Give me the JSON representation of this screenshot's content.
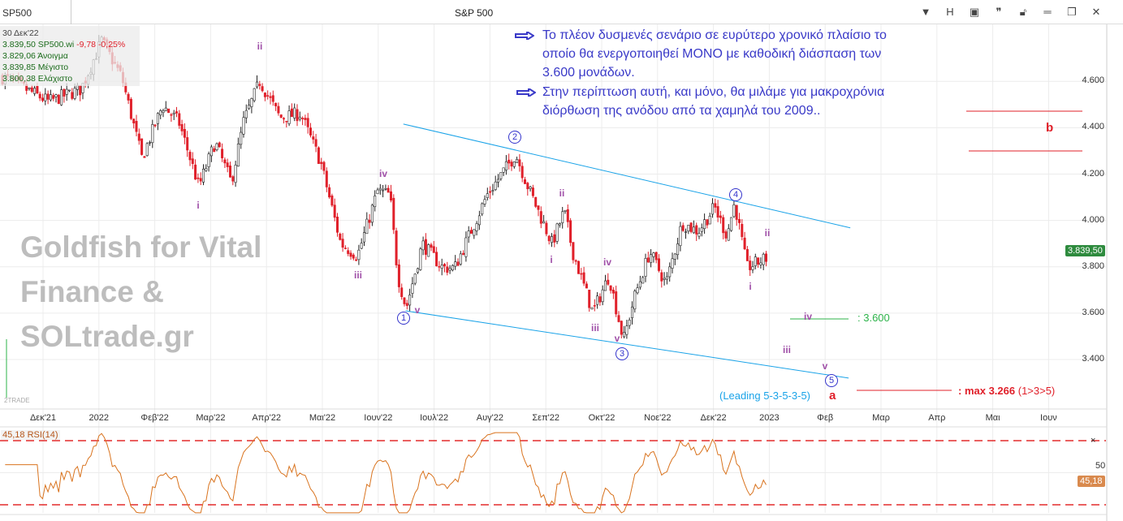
{
  "header": {
    "symbol": "SP500",
    "title": "S&P 500",
    "h_label": "H"
  },
  "info": {
    "date": "30 Δεκ'22",
    "close": "3.839,50",
    "ticker": "SP500.wi",
    "change": "-9,78",
    "change_pct": "-0,25%",
    "open": "3.829,06",
    "open_label": "Άνοιγμα",
    "high": "3.839,85",
    "high_label": "Μέγιστο",
    "low": "3.800,38",
    "low_label": "Ελάχιστο"
  },
  "watermark": [
    "Goldfish for Vital",
    "Finance &",
    "SOLtrade.gr"
  ],
  "brand_small": "2TRADE",
  "notes": [
    [
      "Το πλέον δυσμενές σενάριο σε ευρύτερο χρονικό πλαίσιο το",
      "οποίο θα ενεργοποιηθεί ΜΟΝΟ με καθοδική διάσπαση των",
      "3.600 μονάδων."
    ],
    [
      "Στην περίπτωση αυτή, και μόνο, θα μιλάμε για μακροχρόνια",
      "διόρθωση της ανόδου από τα χαμηλά του 2009.."
    ]
  ],
  "annotations": {
    "level_3600": ": 3.600",
    "max_label": ": max 3.266",
    "max_ratio": "(1>3>5)",
    "leading": "(Leading 5-3-5-3-5)",
    "a": "a",
    "b": "b"
  },
  "waves": {
    "w1": "1",
    "w2": "2",
    "w3": "3",
    "w4": "4",
    "w5": "5",
    "ii_a": "ii",
    "i_a": "i",
    "iii_a": "iii",
    "iv_a": "iv",
    "v_a": "v",
    "ii_b": "ii",
    "i_b": "i",
    "iv_b": "iv",
    "iii_b": "iii",
    "v_b": "v",
    "ii_c": "ii",
    "i_c": "i",
    "iv_c": "iv",
    "iii_c": "iii",
    "v_c": "v"
  },
  "colors": {
    "up": "#222222",
    "down": "#e0202a",
    "channel": "#1aa3e8",
    "rsi": "#d9731e",
    "last_price": "#2e8b3e",
    "target": "#e0202a",
    "support": "#2db34a"
  },
  "chart_data": {
    "type": "candlestick",
    "title": "S&P 500",
    "x_ticks": [
      "Δεκ'21",
      "2022",
      "Φεβ'22",
      "Μαρ'22",
      "Απρ'22",
      "Μαι'22",
      "Ιουν'22",
      "Ιουλ'22",
      "Αυγ'22",
      "Σεπ'22",
      "Οκτ'22",
      "Νοε'22",
      "Δεκ'22",
      "2023",
      "Φεβ",
      "Μαρ",
      "Απρ",
      "Μαι",
      "Ιουν"
    ],
    "y_ticks": [
      "3.400",
      "3.600",
      "3.800",
      "4.000",
      "4.200",
      "4.400",
      "4.600"
    ],
    "y_tick_values": [
      3400,
      3600,
      3800,
      4000,
      4200,
      4400,
      4600
    ],
    "ylim": [
      3180,
      4850
    ],
    "last_price": "3.839,50",
    "price_path_months_since_dec21": [
      [
        -0.7,
        4618
      ],
      [
        0.1,
        4513
      ],
      [
        0.68,
        4566
      ],
      [
        1.05,
        4776
      ],
      [
        1.41,
        4618
      ],
      [
        1.77,
        4268
      ],
      [
        2.14,
        4496
      ],
      [
        2.43,
        4426
      ],
      [
        2.79,
        4146
      ],
      [
        3.08,
        4338
      ],
      [
        3.37,
        4163
      ],
      [
        3.59,
        4426
      ],
      [
        3.88,
        4601
      ],
      [
        4.24,
        4443
      ],
      [
        4.61,
        4461
      ],
      [
        4.97,
        4251
      ],
      [
        5.33,
        3900
      ],
      [
        5.63,
        3848
      ],
      [
        5.99,
        4128
      ],
      [
        6.21,
        4111
      ],
      [
        6.35,
        3761
      ],
      [
        6.5,
        3621
      ],
      [
        6.79,
        3900
      ],
      [
        7.15,
        3796
      ],
      [
        7.37,
        3796
      ],
      [
        7.95,
        4111
      ],
      [
        8.46,
        4286
      ],
      [
        8.68,
        4146
      ],
      [
        9.11,
        3900
      ],
      [
        9.33,
        4041
      ],
      [
        9.48,
        3866
      ],
      [
        9.84,
        3603
      ],
      [
        10.13,
        3761
      ],
      [
        10.39,
        3481
      ],
      [
        10.57,
        3656
      ],
      [
        10.86,
        3866
      ],
      [
        11.15,
        3726
      ],
      [
        11.44,
        3988
      ],
      [
        11.73,
        3953
      ],
      [
        12.02,
        4058
      ],
      [
        12.24,
        3935
      ],
      [
        12.38,
        4076
      ],
      [
        12.6,
        3796
      ],
      [
        12.97,
        3840
      ]
    ],
    "channel_upper": [
      [
        6.45,
        4416
      ],
      [
        14.45,
        3968
      ]
    ],
    "channel_lower": [
      [
        6.49,
        3610
      ],
      [
        14.42,
        3320
      ]
    ],
    "rsi": {
      "label": "RSI(14)",
      "value": "45,18",
      "levels": [
        30,
        50,
        70
      ],
      "level_label": "50"
    }
  }
}
